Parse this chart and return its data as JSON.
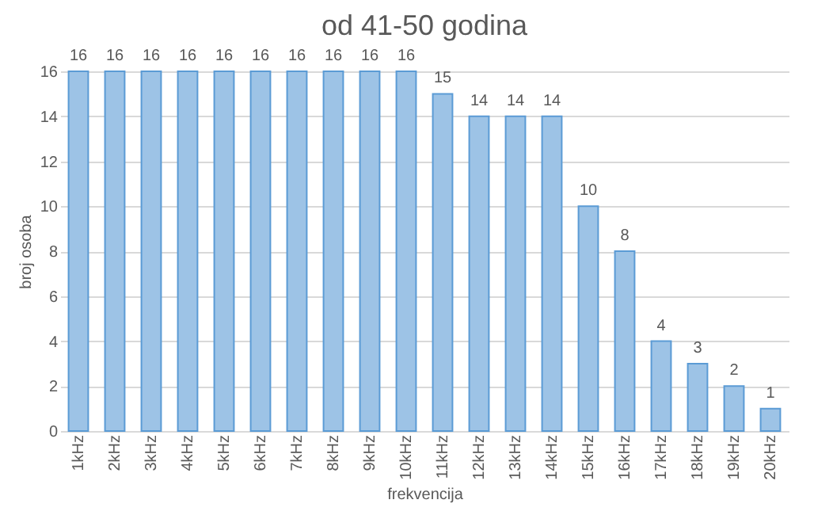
{
  "chart_data": {
    "type": "bar",
    "title": "od 41-50 godina",
    "xlabel": "frekvencija",
    "ylabel": "broj osoba",
    "categories": [
      "1kHz",
      "2kHz",
      "3kHz",
      "4kHz",
      "5kHz",
      "6kHz",
      "7kHz",
      "8kHz",
      "9kHz",
      "10kHz",
      "11kHz",
      "12kHz",
      "13kHz",
      "14kHz",
      "15kHz",
      "16kHz",
      "17kHz",
      "18kHz",
      "19kHz",
      "20kHz"
    ],
    "values": [
      16,
      16,
      16,
      16,
      16,
      16,
      16,
      16,
      16,
      16,
      15,
      14,
      14,
      14,
      10,
      8,
      4,
      3,
      2,
      1
    ],
    "color": "#9dc3e6",
    "ylim": [
      0,
      16
    ],
    "yticks": [
      0,
      2,
      4,
      6,
      8,
      10,
      12,
      14,
      16
    ],
    "grid": "y",
    "data_labels": true
  }
}
